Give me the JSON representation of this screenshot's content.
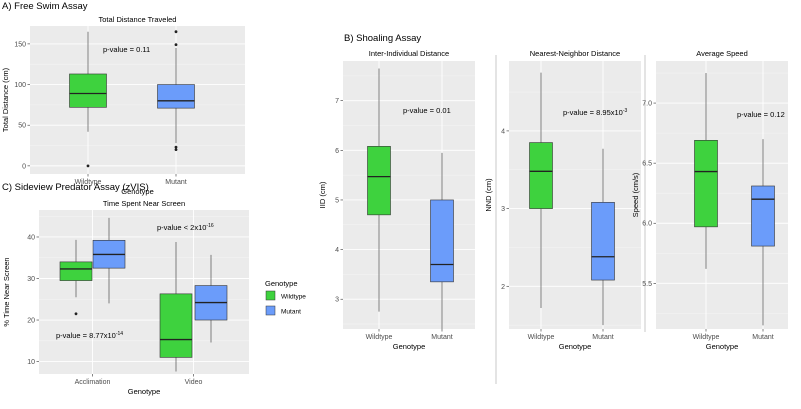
{
  "colors": {
    "wildtype": "#3ed23e",
    "mutant": "#6b9cfa",
    "panel_bg": "#ebebeb",
    "grid": "#ffffff",
    "axis_text": "#4d4d4d"
  },
  "sections": {
    "a": "A) Free Swim Assay",
    "b": "B) Shoaling Assay",
    "c": "C) Sideview Predator Assay (zVIS)"
  },
  "legend": {
    "title": "Genotype",
    "items": [
      {
        "label": "Wildtype",
        "color": "#3ed23e"
      },
      {
        "label": "Mutant",
        "color": "#6b9cfa"
      }
    ]
  },
  "chart_data": [
    {
      "id": "A",
      "type": "boxplot",
      "title": "Total Distance Traveled",
      "xlabel": "Genotype",
      "ylabel": "Total Distance (cm)",
      "ylim": [
        -10,
        172
      ],
      "yticks": [
        0,
        50,
        100,
        150
      ],
      "categories": [
        "Wildtype",
        "Mutant"
      ],
      "annotation": "p-value = 0.11",
      "boxes": [
        {
          "category": "Wildtype",
          "series": "Wildtype",
          "min": 42,
          "q1": 72,
          "median": 89,
          "q3": 113,
          "max": 165,
          "outliers": [
            0
          ]
        },
        {
          "category": "Mutant",
          "series": "Mutant",
          "min": 28,
          "q1": 71,
          "median": 80,
          "q3": 100,
          "max": 145,
          "outliers": [
            165,
            149,
            23,
            20
          ]
        }
      ]
    },
    {
      "id": "B1",
      "type": "boxplot",
      "title": "Inter-Individual Distance",
      "xlabel": "Genotype",
      "ylabel": "IID (cm)",
      "ylim": [
        2.4,
        7.8
      ],
      "yticks": [
        3,
        4,
        5,
        6,
        7
      ],
      "categories": [
        "Wildtype",
        "Mutant"
      ],
      "annotation": "p-value = 0.01",
      "boxes": [
        {
          "category": "Wildtype",
          "series": "Wildtype",
          "min": 2.75,
          "q1": 4.7,
          "median": 5.47,
          "q3": 6.08,
          "max": 7.65,
          "outliers": []
        },
        {
          "category": "Mutant",
          "series": "Mutant",
          "min": 2.4,
          "q1": 3.35,
          "median": 3.7,
          "q3": 5.0,
          "max": 5.95,
          "outliers": []
        }
      ]
    },
    {
      "id": "B2",
      "type": "boxplot",
      "title": "Nearest-Neighbor Distance",
      "xlabel": "Genotype",
      "ylabel": "NND (cm)",
      "ylim": [
        1.45,
        4.9
      ],
      "yticks": [
        2,
        3,
        4
      ],
      "categories": [
        "Wildtype",
        "Mutant"
      ],
      "annotation": "p-value = 8.95x10",
      "annotation_sup": "-3",
      "boxes": [
        {
          "category": "Wildtype",
          "series": "Wildtype",
          "min": 1.72,
          "q1": 3.0,
          "median": 3.48,
          "q3": 3.85,
          "max": 4.75,
          "outliers": []
        },
        {
          "category": "Mutant",
          "series": "Mutant",
          "min": 1.5,
          "q1": 2.08,
          "median": 2.38,
          "q3": 3.08,
          "max": 3.77,
          "outliers": []
        }
      ]
    },
    {
      "id": "B3",
      "type": "boxplot",
      "title": "Average Speed",
      "xlabel": "Genotype",
      "ylabel": "Speed (cm/s)",
      "ylim": [
        5.12,
        7.35
      ],
      "yticks": [
        5.5,
        6.0,
        6.5,
        7.0
      ],
      "categories": [
        "Wildtype",
        "Mutant"
      ],
      "annotation": "p-value = 0.12",
      "boxes": [
        {
          "category": "Wildtype",
          "series": "Wildtype",
          "min": 5.62,
          "q1": 5.97,
          "median": 6.43,
          "q3": 6.69,
          "max": 7.25,
          "outliers": []
        },
        {
          "category": "Mutant",
          "series": "Mutant",
          "min": 5.15,
          "q1": 5.81,
          "median": 6.2,
          "q3": 6.31,
          "max": 6.7,
          "outliers": []
        }
      ]
    },
    {
      "id": "C",
      "type": "boxplot",
      "title": "Time Spent Near Screen",
      "xlabel": "Genotype",
      "ylabel": "% Time Near Screen",
      "ylim": [
        7,
        46.5
      ],
      "yticks": [
        10,
        20,
        30,
        40
      ],
      "categories": [
        "Acclimation",
        "Video"
      ],
      "series": [
        "Wildtype",
        "Mutant"
      ],
      "annotations": [
        {
          "text": "p-value < 2x10",
          "sup": "-16"
        },
        {
          "text": "p-value = 8.77x10",
          "sup": "-14"
        }
      ],
      "boxes": [
        {
          "category": "Acclimation",
          "series": "Wildtype",
          "min": 25.5,
          "q1": 29.5,
          "median": 32.3,
          "q3": 34.0,
          "max": 39.3,
          "outliers": [
            21.5
          ]
        },
        {
          "category": "Acclimation",
          "series": "Mutant",
          "min": 24.0,
          "q1": 32.5,
          "median": 35.8,
          "q3": 39.2,
          "max": 44.6,
          "outliers": []
        },
        {
          "category": "Video",
          "series": "Wildtype",
          "min": 7.6,
          "q1": 11.0,
          "median": 15.3,
          "q3": 26.3,
          "max": 38.8,
          "outliers": []
        },
        {
          "category": "Video",
          "series": "Mutant",
          "min": 14.6,
          "q1": 20.0,
          "median": 24.2,
          "q3": 28.3,
          "max": 35.7,
          "outliers": []
        }
      ]
    }
  ]
}
